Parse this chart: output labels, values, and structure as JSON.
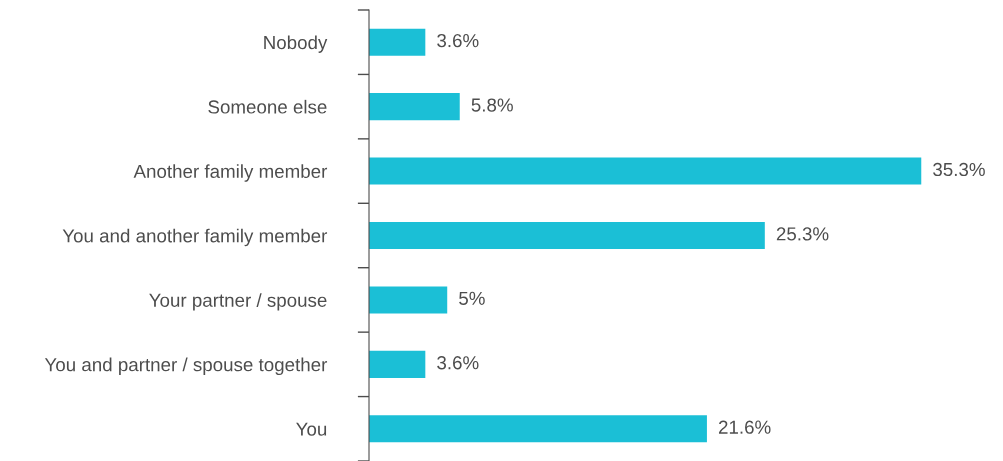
{
  "chart_data": {
    "type": "bar",
    "orientation": "horizontal",
    "categories": [
      "Nobody",
      "Someone else",
      "Another family member",
      "You and another family member",
      "Your partner / spouse",
      "You and partner / spouse together",
      "You"
    ],
    "values": [
      3.6,
      5.8,
      35.3,
      25.3,
      5,
      3.6,
      21.6
    ],
    "value_labels": [
      "3.6%",
      "5.8%",
      "35.3%",
      "25.3%",
      "5%",
      "3.6%",
      "21.6%"
    ],
    "color": "#1bbfd6",
    "grid": false,
    "legend": false,
    "tick_labels": "y"
  }
}
